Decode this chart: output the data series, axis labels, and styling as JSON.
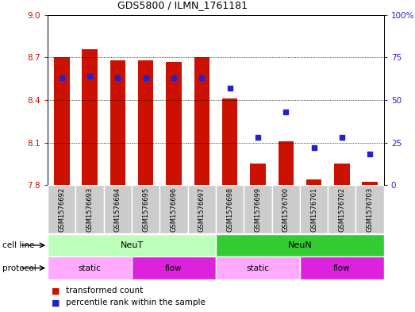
{
  "title": "GDS5800 / ILMN_1761181",
  "samples": [
    "GSM1576692",
    "GSM1576693",
    "GSM1576694",
    "GSM1576695",
    "GSM1576696",
    "GSM1576697",
    "GSM1576698",
    "GSM1576699",
    "GSM1576700",
    "GSM1576701",
    "GSM1576702",
    "GSM1576703"
  ],
  "bar_values": [
    8.7,
    8.76,
    8.68,
    8.68,
    8.67,
    8.7,
    8.41,
    7.95,
    8.11,
    7.84,
    7.95,
    7.82
  ],
  "percentile_values": [
    63,
    64,
    63,
    63,
    63,
    63,
    57,
    28,
    43,
    22,
    28,
    18
  ],
  "y_min": 7.8,
  "y_max": 9.0,
  "y_ticks_left": [
    7.8,
    8.1,
    8.4,
    8.7,
    9.0
  ],
  "y_ticks_right": [
    0,
    25,
    50,
    75,
    100
  ],
  "bar_color": "#cc1100",
  "dot_color": "#2222cc",
  "cell_line_NeuT_color": "#bbffbb",
  "cell_line_NeuN_color": "#33cc33",
  "protocol_static_color": "#ffaaff",
  "protocol_flow_color": "#dd22dd",
  "bg_color": "#ffffff",
  "sample_box_color": "#cccccc",
  "title_fontsize": 9,
  "tick_fontsize": 7.5,
  "label_fontsize": 7.5,
  "bar_width": 0.55
}
